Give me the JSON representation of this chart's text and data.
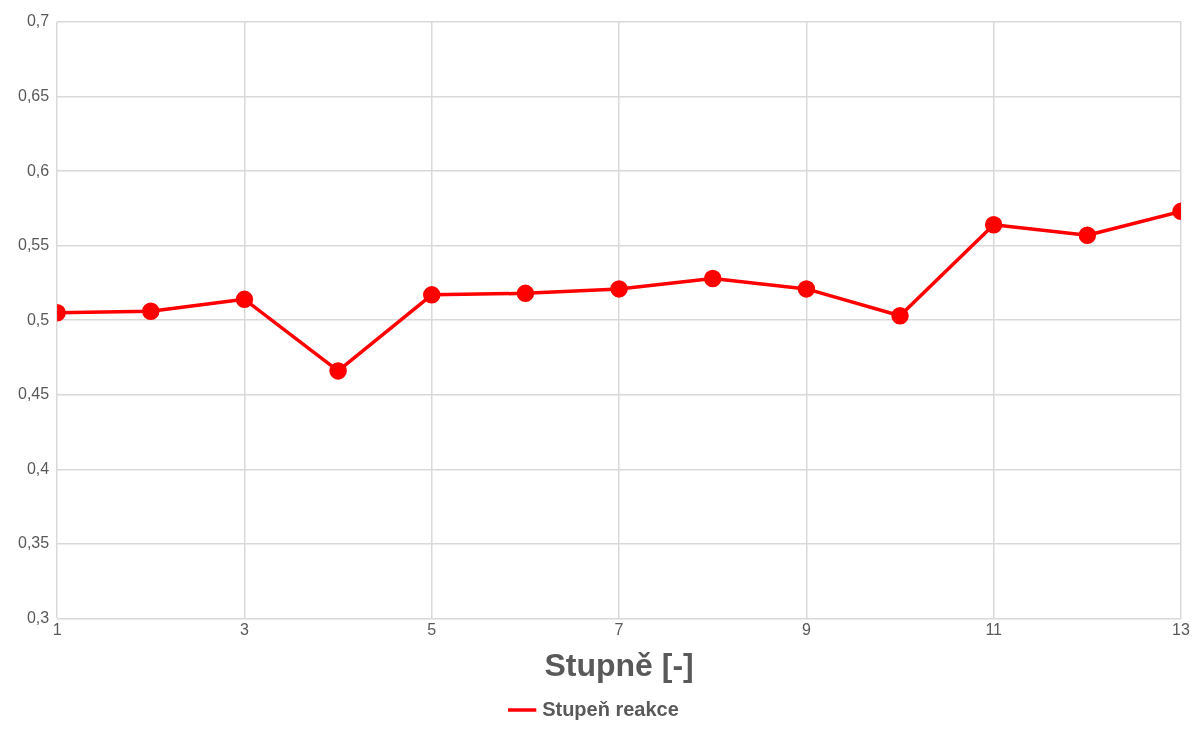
{
  "chart_data": {
    "type": "line",
    "xlabel": "Stupně [-]",
    "x": [
      1,
      2,
      3,
      4,
      5,
      6,
      7,
      8,
      9,
      10,
      11,
      12,
      13
    ],
    "series": [
      {
        "name": "Stupeň reakce",
        "color": "#ff0000",
        "values": [
          0.505,
          0.506,
          0.514,
          0.466,
          0.517,
          0.518,
          0.521,
          0.528,
          0.521,
          0.503,
          0.564,
          0.557,
          0.573
        ]
      }
    ],
    "xlim": [
      1,
      13
    ],
    "xticks": [
      1,
      3,
      5,
      7,
      9,
      11,
      13
    ],
    "ylim": [
      0.3,
      0.7
    ],
    "yticks": [
      {
        "value": 0.3,
        "label": "0,3"
      },
      {
        "value": 0.35,
        "label": "0,35"
      },
      {
        "value": 0.4,
        "label": "0,4"
      },
      {
        "value": 0.45,
        "label": "0,45"
      },
      {
        "value": 0.5,
        "label": "0,5"
      },
      {
        "value": 0.55,
        "label": "0,55"
      },
      {
        "value": 0.6,
        "label": "0,6"
      },
      {
        "value": 0.65,
        "label": "0,65"
      },
      {
        "value": 0.7,
        "label": "0,7"
      }
    ],
    "grid": true,
    "legend": "bottom",
    "marker": "circle",
    "line_style": "solid"
  }
}
